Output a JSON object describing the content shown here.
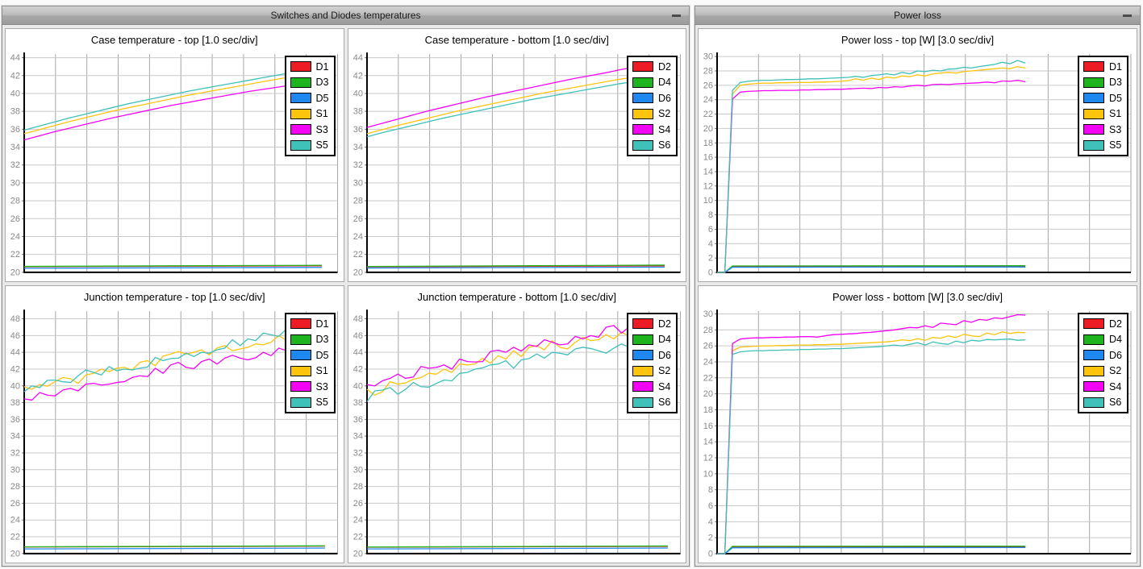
{
  "windows": [
    {
      "title": "Switches and Diodes temperatures",
      "window_controls": [
        "minimize"
      ]
    },
    {
      "title": "Power loss",
      "window_controls": [
        "minimize"
      ]
    }
  ],
  "colors": {
    "red": "#ed1c24",
    "green": "#1eb41e",
    "blue": "#1e87f0",
    "yellow": "#fdc40e",
    "magenta": "#f303f3",
    "teal": "#3fc0b8",
    "grid_vertical": "#a6a6a6",
    "grid_horizontal": "#c9c9c9",
    "axis": "#000000",
    "tick_label": "#8a8a8a",
    "titlebar_text": "#1b1b1b"
  },
  "chart_data": [
    {
      "type": "line",
      "title": "Case temperature - top [1.0 sec/div]",
      "sec_per_div": 1.0,
      "x_divisions": 10,
      "ylim": [
        20,
        44.4
      ],
      "yticks": {
        "min": 20,
        "max": 44,
        "step": 2
      },
      "grid": true,
      "legend_position": "top-right",
      "data_fraction": 0.95,
      "series": [
        {
          "name": "D1",
          "color": "#ed1c24",
          "values": [
            20.62,
            20.72
          ]
        },
        {
          "name": "D3",
          "color": "#1eb41e",
          "values": [
            20.66,
            20.78
          ]
        },
        {
          "name": "D5",
          "color": "#1e87f0",
          "values": [
            20.45,
            20.55
          ]
        },
        {
          "name": "S1",
          "color": "#fdc40e",
          "values": [
            35.5,
            35.95,
            36.4,
            36.85,
            37.25,
            37.65,
            38.05,
            38.4,
            38.75,
            39.1,
            39.45,
            39.8,
            40.1,
            40.4,
            40.7,
            41.0,
            41.3,
            41.6,
            41.9,
            42.2,
            42.5
          ]
        },
        {
          "name": "S3",
          "color": "#f303f3",
          "values": [
            34.8,
            35.25,
            35.7,
            36.1,
            36.5,
            36.9,
            37.3,
            37.65,
            38.0,
            38.35,
            38.7,
            39.0,
            39.3,
            39.6,
            39.9,
            40.2,
            40.45,
            40.7,
            40.95,
            41.2,
            41.45
          ]
        },
        {
          "name": "S5",
          "color": "#3fc0b8",
          "values": [
            35.9,
            36.35,
            36.8,
            37.25,
            37.65,
            38.05,
            38.45,
            38.85,
            39.2,
            39.55,
            39.9,
            40.25,
            40.55,
            40.85,
            41.15,
            41.45,
            41.75,
            42.05,
            42.35,
            42.65,
            42.95
          ]
        }
      ]
    },
    {
      "type": "line",
      "title": "Case temperature - bottom [1.0 sec/div]",
      "sec_per_div": 1.0,
      "x_divisions": 10,
      "ylim": [
        20,
        44.4
      ],
      "yticks": {
        "min": 20,
        "max": 44,
        "step": 2
      },
      "grid": true,
      "legend_position": "top-right",
      "data_fraction": 0.95,
      "series": [
        {
          "name": "D2",
          "color": "#ed1c24",
          "values": [
            20.6,
            20.72
          ]
        },
        {
          "name": "D4",
          "color": "#1eb41e",
          "values": [
            20.65,
            20.8
          ]
        },
        {
          "name": "D6",
          "color": "#1e87f0",
          "values": [
            20.48,
            20.58
          ]
        },
        {
          "name": "S2",
          "color": "#fdc40e",
          "values": [
            35.5,
            35.95,
            36.4,
            36.8,
            37.2,
            37.6,
            38.0,
            38.35,
            38.7,
            39.05,
            39.4,
            39.75,
            40.1,
            40.4,
            40.7,
            41.0,
            41.3,
            41.6,
            41.85,
            42.1,
            42.35
          ]
        },
        {
          "name": "S4",
          "color": "#f303f3",
          "values": [
            36.2,
            36.65,
            37.1,
            37.55,
            38.0,
            38.4,
            38.8,
            39.2,
            39.6,
            39.95,
            40.3,
            40.65,
            41.0,
            41.35,
            41.7,
            42.0,
            42.3,
            42.65,
            42.95,
            43.25,
            43.55
          ]
        },
        {
          "name": "S6",
          "color": "#3fc0b8",
          "values": [
            35.15,
            35.6,
            36.0,
            36.4,
            36.8,
            37.2,
            37.55,
            37.9,
            38.25,
            38.6,
            38.95,
            39.3,
            39.6,
            39.9,
            40.2,
            40.5,
            40.8,
            41.1,
            41.35,
            41.6,
            41.85
          ]
        }
      ]
    },
    {
      "type": "line",
      "title": "Junction temperature - top [1.0 sec/div]",
      "sec_per_div": 1.0,
      "x_divisions": 10,
      "ylim": [
        20,
        48.9
      ],
      "yticks": {
        "min": 20,
        "max": 48,
        "step": 2
      },
      "grid": true,
      "legend_position": "top-right",
      "data_fraction": 0.96,
      "series": [
        {
          "name": "D1",
          "color": "#ed1c24",
          "values": [
            20.78,
            20.88
          ]
        },
        {
          "name": "D3",
          "color": "#1eb41e",
          "values": [
            20.8,
            20.92
          ]
        },
        {
          "name": "D5",
          "color": "#1e87f0",
          "values": [
            20.55,
            20.65
          ]
        },
        {
          "name": "S1",
          "color": "#fdc40e",
          "values": [
            39.9,
            39.6,
            40.15,
            39.95,
            40.5,
            41.0,
            40.85,
            40.3,
            41.3,
            41.5,
            42.0,
            41.7,
            42.1,
            42.2,
            41.9,
            42.8,
            43.0,
            42.4,
            43.55,
            43.8,
            44.1,
            43.8,
            44.0,
            44.3,
            43.7,
            44.5,
            44.8,
            44.2,
            44.4,
            44.6,
            45.0,
            44.9,
            45.2,
            46.0,
            45.4,
            46.2,
            45.7,
            46.5,
            46.0,
            46.1
          ]
        },
        {
          "name": "S3",
          "color": "#f303f3",
          "values": [
            38.45,
            38.3,
            39.2,
            38.9,
            38.8,
            39.5,
            39.7,
            39.4,
            40.2,
            40.3,
            40.1,
            40.2,
            40.4,
            40.5,
            41.0,
            41.2,
            41.1,
            42.1,
            41.5,
            42.5,
            42.8,
            42.2,
            42.05,
            42.9,
            43.2,
            42.6,
            43.3,
            43.65,
            43.3,
            43.1,
            43.35,
            44.0,
            43.6,
            44.5,
            44.2,
            44.9,
            45.1,
            44.3,
            44.6,
            45.7
          ]
        },
        {
          "name": "S5",
          "color": "#3fc0b8",
          "values": [
            39.3,
            40.0,
            39.8,
            40.65,
            40.7,
            40.5,
            40.4,
            41.2,
            41.9,
            41.6,
            41.3,
            42.3,
            41.8,
            42.0,
            41.9,
            42.1,
            42.25,
            43.4,
            43.0,
            43.25,
            43.3,
            43.9,
            43.5,
            44.0,
            43.9,
            44.3,
            44.5,
            45.5,
            44.8,
            45.6,
            45.4,
            46.3,
            46.1,
            45.9,
            46.8,
            46.0,
            47.0,
            47.4,
            46.9,
            47.5
          ]
        }
      ]
    },
    {
      "type": "line",
      "title": "Junction temperature - bottom [1.0 sec/div]",
      "sec_per_div": 1.0,
      "x_divisions": 10,
      "ylim": [
        20,
        48.9
      ],
      "yticks": {
        "min": 20,
        "max": 48,
        "step": 2
      },
      "grid": true,
      "legend_position": "top-right",
      "data_fraction": 0.96,
      "series": [
        {
          "name": "D2",
          "color": "#ed1c24",
          "values": [
            20.75,
            20.85
          ]
        },
        {
          "name": "D4",
          "color": "#1eb41e",
          "values": [
            20.78,
            20.9
          ]
        },
        {
          "name": "D6",
          "color": "#1e87f0",
          "values": [
            20.55,
            20.65
          ]
        },
        {
          "name": "S2",
          "color": "#fdc40e",
          "values": [
            39.6,
            38.9,
            39.3,
            40.5,
            40.2,
            40.35,
            40.8,
            41.0,
            41.5,
            41.4,
            42.0,
            41.6,
            42.6,
            42.5,
            42.6,
            43.3,
            42.7,
            43.6,
            43.2,
            44.2,
            43.5,
            44.6,
            44.8,
            44.3,
            45.4,
            44.6,
            44.4,
            45.2,
            45.8,
            45.4,
            45.5,
            46.1,
            45.6,
            46.4,
            45.9,
            46.5,
            46.3,
            46.2,
            45.6,
            46.4
          ]
        },
        {
          "name": "S4",
          "color": "#f303f3",
          "values": [
            40.15,
            40.0,
            40.6,
            40.9,
            41.4,
            40.9,
            41.05,
            42.3,
            42.1,
            42.2,
            42.5,
            42.0,
            43.2,
            42.9,
            42.85,
            42.9,
            44.1,
            44.25,
            44.0,
            44.6,
            44.15,
            44.9,
            44.7,
            45.5,
            45.2,
            44.9,
            45.0,
            45.9,
            45.6,
            46.0,
            45.8,
            47.0,
            47.2,
            46.3,
            47.05,
            47.6,
            46.6,
            47.7,
            47.3,
            47.1
          ]
        },
        {
          "name": "S6",
          "color": "#3fc0b8",
          "values": [
            38.1,
            39.4,
            39.5,
            39.8,
            39.0,
            39.6,
            40.4,
            39.9,
            39.85,
            40.3,
            40.7,
            40.6,
            41.5,
            41.6,
            42.0,
            42.15,
            42.5,
            42.6,
            43.0,
            42.1,
            43.1,
            43.25,
            43.8,
            43.3,
            44.0,
            43.9,
            43.7,
            44.4,
            44.6,
            44.45,
            44.2,
            43.9,
            44.5,
            45.0,
            44.6,
            45.2,
            44.8,
            45.1,
            45.0,
            45.6
          ]
        }
      ]
    },
    {
      "type": "line",
      "title": "Power loss - top [W] [3.0 sec/div]",
      "unit": "W",
      "sec_per_div": 3.0,
      "x_divisions": 10,
      "ylim": [
        0,
        30.35
      ],
      "yticks": {
        "min": 0,
        "max": 30,
        "step": 2
      },
      "grid": true,
      "legend_position": "top-right",
      "data_fraction": 0.745,
      "series": [
        {
          "name": "D1",
          "color": "#ed1c24",
          "xy": [
            [
              0,
              0
            ],
            [
              0.025,
              0
            ],
            [
              0.05,
              0.8
            ],
            [
              1,
              0.84
            ]
          ]
        },
        {
          "name": "D3",
          "color": "#1eb41e",
          "xy": [
            [
              0,
              0
            ],
            [
              0.025,
              0
            ],
            [
              0.05,
              0.9
            ],
            [
              1,
              0.93
            ]
          ]
        },
        {
          "name": "D5",
          "color": "#1e87f0",
          "xy": [
            [
              0,
              0
            ],
            [
              0.025,
              0
            ],
            [
              0.05,
              0.72
            ],
            [
              1,
              0.75
            ]
          ]
        },
        {
          "name": "S1",
          "color": "#fdc40e",
          "values": [
            0,
            0,
            24.8,
            26.0,
            26.15,
            26.25,
            26.3,
            26.3,
            26.35,
            26.35,
            26.4,
            26.4,
            26.4,
            26.45,
            26.45,
            26.5,
            26.55,
            26.65,
            26.9,
            26.7,
            27.0,
            26.8,
            27.15,
            27.0,
            27.3,
            27.2,
            27.45,
            27.3,
            27.6,
            27.7,
            27.8,
            27.7,
            27.9,
            28.0,
            28.1,
            28.2,
            28.3,
            28.4,
            28.3,
            28.6,
            28.4
          ]
        },
        {
          "name": "S3",
          "color": "#f303f3",
          "values": [
            0,
            0,
            24.1,
            25.05,
            25.15,
            25.2,
            25.25,
            25.25,
            25.3,
            25.3,
            25.3,
            25.35,
            25.35,
            25.4,
            25.4,
            25.45,
            25.45,
            25.5,
            25.55,
            25.6,
            25.55,
            25.7,
            25.65,
            25.8,
            25.75,
            25.9,
            26.0,
            25.9,
            26.1,
            26.15,
            26.1,
            26.2,
            26.25,
            26.3,
            26.35,
            26.45,
            26.35,
            26.6,
            26.55,
            26.7,
            26.5
          ]
        },
        {
          "name": "S5",
          "color": "#3fc0b8",
          "values": [
            0,
            0,
            25.3,
            26.4,
            26.55,
            26.65,
            26.7,
            26.7,
            26.75,
            26.8,
            26.8,
            26.85,
            26.9,
            26.9,
            26.95,
            27.0,
            27.05,
            27.1,
            27.25,
            27.1,
            27.35,
            27.45,
            27.6,
            27.45,
            27.8,
            27.6,
            28.0,
            27.9,
            28.1,
            28.0,
            28.25,
            28.3,
            28.5,
            28.4,
            28.6,
            28.75,
            28.9,
            29.2,
            29.0,
            29.45,
            29.1
          ]
        }
      ]
    },
    {
      "type": "line",
      "title": "Power loss - bottom [W] [3.0 sec/div]",
      "unit": "W",
      "sec_per_div": 3.0,
      "x_divisions": 10,
      "ylim": [
        0,
        30.35
      ],
      "yticks": {
        "min": 0,
        "max": 30,
        "step": 2
      },
      "grid": true,
      "legend_position": "top-right",
      "data_fraction": 0.745,
      "series": [
        {
          "name": "D2",
          "color": "#ed1c24",
          "xy": [
            [
              0,
              0
            ],
            [
              0.025,
              0
            ],
            [
              0.05,
              0.82
            ],
            [
              1,
              0.86
            ]
          ]
        },
        {
          "name": "D4",
          "color": "#1eb41e",
          "xy": [
            [
              0,
              0
            ],
            [
              0.025,
              0
            ],
            [
              0.05,
              0.92
            ],
            [
              1,
              0.95
            ]
          ]
        },
        {
          "name": "D6",
          "color": "#1e87f0",
          "xy": [
            [
              0,
              0
            ],
            [
              0.025,
              0
            ],
            [
              0.05,
              0.74
            ],
            [
              1,
              0.77
            ]
          ]
        },
        {
          "name": "S2",
          "color": "#fdc40e",
          "values": [
            0,
            0,
            25.4,
            25.85,
            25.9,
            25.95,
            26.0,
            26.0,
            26.05,
            26.05,
            26.1,
            26.1,
            26.1,
            26.15,
            26.15,
            26.2,
            26.2,
            26.25,
            26.3,
            26.35,
            26.4,
            26.45,
            26.5,
            26.6,
            26.75,
            26.65,
            26.9,
            26.7,
            27.05,
            26.95,
            27.25,
            27.05,
            27.45,
            27.25,
            27.15,
            27.6,
            27.4,
            27.75,
            27.55,
            27.7,
            27.65
          ]
        },
        {
          "name": "S4",
          "color": "#f303f3",
          "values": [
            0,
            0,
            26.3,
            26.85,
            26.95,
            27.0,
            27.0,
            27.05,
            27.05,
            27.1,
            27.1,
            27.15,
            27.15,
            27.1,
            27.25,
            27.4,
            27.45,
            27.5,
            27.55,
            27.65,
            27.7,
            27.8,
            27.9,
            28.0,
            28.15,
            28.3,
            28.25,
            28.5,
            28.3,
            28.85,
            28.75,
            28.65,
            29.15,
            28.95,
            29.3,
            29.2,
            29.5,
            29.4,
            29.65,
            29.9,
            29.85
          ]
        },
        {
          "name": "S6",
          "color": "#3fc0b8",
          "values": [
            0,
            0,
            24.95,
            25.25,
            25.35,
            25.4,
            25.4,
            25.45,
            25.45,
            25.5,
            25.5,
            25.55,
            25.55,
            25.6,
            25.6,
            25.65,
            25.65,
            25.7,
            25.75,
            25.8,
            25.85,
            25.9,
            26.0,
            26.1,
            26.0,
            26.2,
            26.4,
            26.1,
            26.5,
            26.3,
            26.2,
            26.6,
            26.4,
            26.7,
            26.6,
            26.8,
            26.75,
            26.8,
            26.85,
            26.7,
            26.75
          ]
        }
      ]
    }
  ]
}
